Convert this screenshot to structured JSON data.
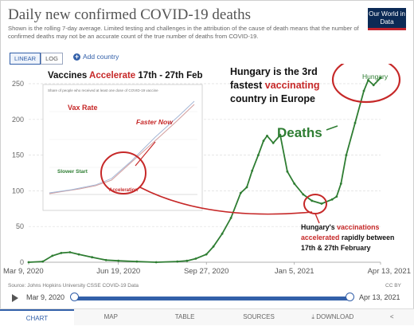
{
  "header": {
    "title": "Daily new confirmed COVID-19 deaths",
    "subtitle": "Shown is the rolling 7-day average. Limited testing and challenges in the attribution of the cause of death means that the number of confirmed deaths may not be an accurate count of the true number of deaths from COVID-19.",
    "logo_text": "Our World in Data"
  },
  "controls": {
    "linear_label": "LINEAR",
    "log_label": "LOG",
    "add_country_label": "Add country"
  },
  "footer": {
    "source": "Source: Johns Hopkins University CSSE COVID-19 Data",
    "license": "CC BY"
  },
  "timeline": {
    "start": "Mar 9, 2020",
    "end": "Apr 13, 2021"
  },
  "tabs": {
    "chart": "CHART",
    "map": "MAP",
    "table": "TABLE",
    "sources": "SOURCES",
    "download": "DOWNLOAD"
  },
  "annotations": {
    "vaccines_prefix": "Vaccines ",
    "vaccines_accent": "Accelerate",
    "vaccines_suffix": " 17th - 27th Feb",
    "hungary_line1": "Hungary is the 3rd",
    "hungary_line2_prefix": "fastest ",
    "hungary_line2_accent": "vaccinating",
    "hungary_line3": "country in Europe",
    "deaths": "Deaths",
    "bottom_line1_prefix": "Hungary's ",
    "bottom_line1_accent": "vaccinations",
    "bottom_line2_accent": "accelerated",
    "bottom_line2_suffix": " rapidly between",
    "bottom_line3": "17th & 27th February"
  },
  "inset": {
    "header": "Share of people who received at least one dose of COVID-19 vaccine",
    "vax_rate": "Vax Rate",
    "faster_now": "Faster Now",
    "slower_start": "Slower Start",
    "acceleration": "Acceleration"
  },
  "colors": {
    "series": "#2e7d32",
    "accent": "#c62828",
    "brand": "#3360a9",
    "grid": "#dddddd"
  },
  "chart_data": {
    "type": "line",
    "title": "Daily new confirmed COVID-19 deaths",
    "x_tick_labels": [
      "Mar 9, 2020",
      "Jun 19, 2020",
      "Sep 27, 2020",
      "Jan 5, 2021",
      "Apr 13, 2021"
    ],
    "y_tick_labels": [
      "0",
      "50",
      "100",
      "150",
      "200",
      "250"
    ],
    "ylim": [
      0,
      270
    ],
    "grid": "horizontal",
    "series": [
      {
        "name": "Hungary",
        "x": [
          "2020-03-09",
          "2020-03-25",
          "2020-04-05",
          "2020-04-15",
          "2020-04-25",
          "2020-05-05",
          "2020-05-20",
          "2020-06-05",
          "2020-06-19",
          "2020-07-10",
          "2020-08-01",
          "2020-08-25",
          "2020-09-05",
          "2020-09-15",
          "2020-09-27",
          "2020-10-05",
          "2020-10-15",
          "2020-10-25",
          "2020-11-05",
          "2020-11-12",
          "2020-11-18",
          "2020-11-25",
          "2020-12-01",
          "2020-12-05",
          "2020-12-12",
          "2020-12-20",
          "2020-12-28",
          "2021-01-05",
          "2021-01-15",
          "2021-01-25",
          "2021-02-05",
          "2021-02-17",
          "2021-02-22",
          "2021-02-27",
          "2021-03-05",
          "2021-03-15",
          "2021-03-25",
          "2021-03-30",
          "2021-04-05",
          "2021-04-13"
        ],
        "values": [
          0,
          1,
          9,
          13,
          14,
          11,
          7,
          3,
          2,
          1,
          0,
          1,
          2,
          5,
          11,
          22,
          40,
          62,
          97,
          105,
          128,
          150,
          170,
          177,
          167,
          178,
          127,
          110,
          95,
          86,
          82,
          88,
          92,
          110,
          150,
          195,
          240,
          255,
          248,
          258
        ]
      }
    ]
  }
}
